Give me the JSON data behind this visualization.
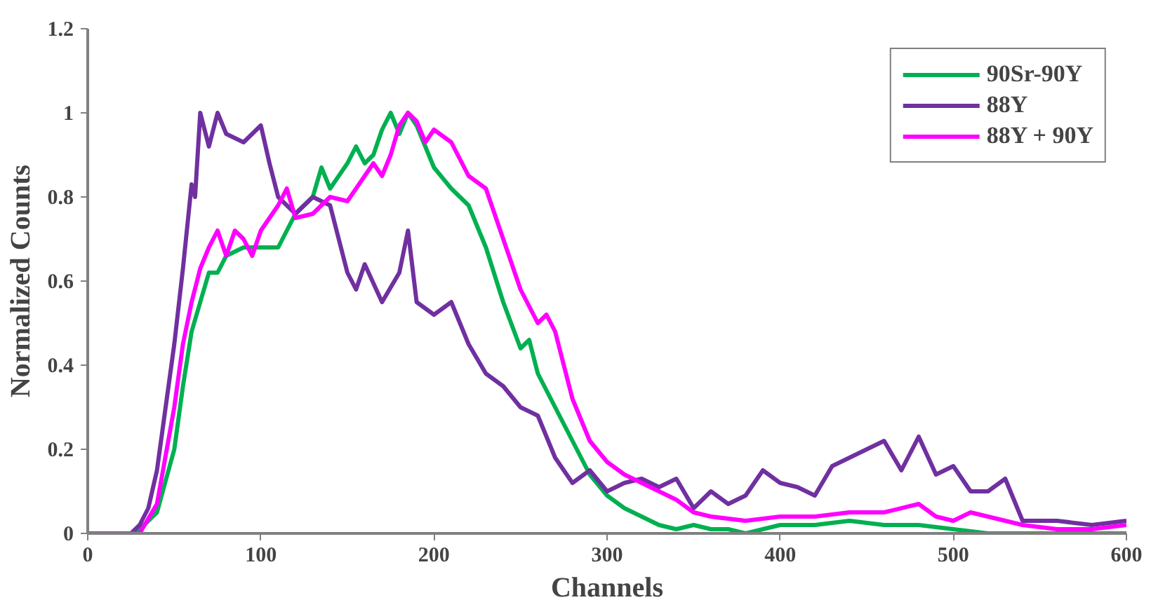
{
  "chart_data": {
    "type": "line",
    "xlabel": "Channels",
    "ylabel": "Normalized Counts",
    "xlim": [
      0,
      600
    ],
    "xticks": [
      0,
      100,
      200,
      300,
      400,
      500,
      600
    ],
    "ylim": [
      0,
      1.2
    ],
    "yticks": [
      0,
      0.2,
      0.4,
      0.6,
      0.8,
      1,
      1.2
    ],
    "grid": false,
    "legend": "top right",
    "marker": "none",
    "line_style": "solid",
    "series": [
      {
        "name": "90Sr-90Y",
        "color": "#00b050",
        "x": [
          0,
          25,
          30,
          40,
          50,
          55,
          60,
          65,
          70,
          75,
          80,
          90,
          100,
          110,
          120,
          130,
          135,
          140,
          150,
          155,
          160,
          165,
          170,
          175,
          180,
          185,
          190,
          200,
          210,
          220,
          230,
          240,
          250,
          255,
          260,
          270,
          280,
          290,
          300,
          310,
          320,
          330,
          340,
          350,
          360,
          370,
          380,
          400,
          420,
          440,
          460,
          480,
          500,
          520,
          540,
          600
        ],
        "values": [
          0,
          0,
          0.01,
          0.05,
          0.2,
          0.35,
          0.48,
          0.55,
          0.62,
          0.62,
          0.66,
          0.68,
          0.68,
          0.68,
          0.76,
          0.8,
          0.87,
          0.82,
          0.88,
          0.92,
          0.88,
          0.9,
          0.96,
          1.0,
          0.95,
          1.0,
          0.97,
          0.87,
          0.82,
          0.78,
          0.68,
          0.55,
          0.44,
          0.46,
          0.38,
          0.3,
          0.22,
          0.14,
          0.09,
          0.06,
          0.04,
          0.02,
          0.01,
          0.02,
          0.01,
          0.01,
          0,
          0.02,
          0.02,
          0.03,
          0.02,
          0.02,
          0.01,
          0,
          0,
          0
        ]
      },
      {
        "name": "88Y",
        "color": "#7030a0",
        "x": [
          0,
          25,
          30,
          35,
          40,
          45,
          50,
          55,
          60,
          62,
          65,
          70,
          75,
          80,
          90,
          100,
          105,
          110,
          120,
          130,
          140,
          150,
          155,
          160,
          170,
          180,
          185,
          190,
          200,
          210,
          220,
          230,
          240,
          250,
          260,
          270,
          280,
          290,
          300,
          310,
          320,
          330,
          340,
          350,
          360,
          370,
          380,
          390,
          400,
          410,
          420,
          430,
          440,
          450,
          460,
          470,
          480,
          490,
          500,
          510,
          520,
          530,
          540,
          560,
          580,
          600
        ],
        "values": [
          0,
          0,
          0.02,
          0.06,
          0.15,
          0.3,
          0.45,
          0.63,
          0.83,
          0.8,
          1.0,
          0.92,
          1.0,
          0.95,
          0.93,
          0.97,
          0.88,
          0.8,
          0.76,
          0.8,
          0.78,
          0.62,
          0.58,
          0.64,
          0.55,
          0.62,
          0.72,
          0.55,
          0.52,
          0.55,
          0.45,
          0.38,
          0.35,
          0.3,
          0.28,
          0.18,
          0.12,
          0.15,
          0.1,
          0.12,
          0.13,
          0.11,
          0.13,
          0.06,
          0.1,
          0.07,
          0.09,
          0.15,
          0.12,
          0.11,
          0.09,
          0.16,
          0.18,
          0.2,
          0.22,
          0.15,
          0.23,
          0.14,
          0.16,
          0.1,
          0.1,
          0.13,
          0.03,
          0.03,
          0.02,
          0.03
        ]
      },
      {
        "name": "88Y + 90Y",
        "color": "#ff00ff",
        "x": [
          0,
          30,
          40,
          50,
          55,
          60,
          65,
          70,
          75,
          80,
          85,
          90,
          95,
          100,
          110,
          115,
          120,
          130,
          140,
          150,
          160,
          165,
          170,
          175,
          180,
          185,
          190,
          195,
          200,
          210,
          220,
          230,
          240,
          250,
          260,
          265,
          270,
          280,
          290,
          300,
          310,
          320,
          330,
          340,
          350,
          360,
          380,
          400,
          420,
          440,
          460,
          480,
          490,
          500,
          510,
          520,
          540,
          560,
          580,
          600
        ],
        "values": [
          0,
          0,
          0.07,
          0.3,
          0.45,
          0.55,
          0.63,
          0.68,
          0.72,
          0.66,
          0.72,
          0.7,
          0.66,
          0.72,
          0.78,
          0.82,
          0.75,
          0.76,
          0.8,
          0.79,
          0.85,
          0.88,
          0.85,
          0.9,
          0.97,
          1.0,
          0.98,
          0.93,
          0.96,
          0.93,
          0.85,
          0.82,
          0.7,
          0.58,
          0.5,
          0.52,
          0.48,
          0.32,
          0.22,
          0.17,
          0.14,
          0.12,
          0.1,
          0.08,
          0.05,
          0.04,
          0.03,
          0.04,
          0.04,
          0.05,
          0.05,
          0.07,
          0.04,
          0.03,
          0.05,
          0.04,
          0.02,
          0.01,
          0.01,
          0.02
        ]
      }
    ]
  }
}
